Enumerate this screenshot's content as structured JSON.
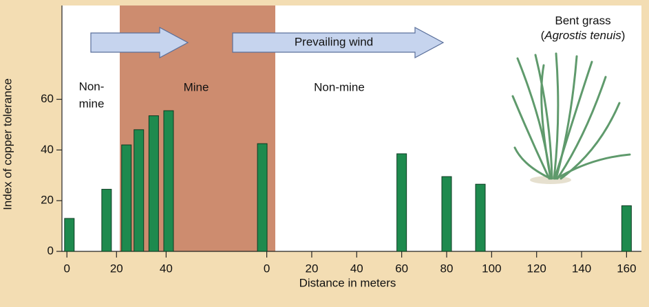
{
  "chart_data": {
    "type": "bar",
    "ylabel": "Index of copper tolerance",
    "xlabel": "Distance in meters",
    "ylim": [
      0,
      97
    ],
    "yticks": [
      0,
      20,
      40,
      60
    ],
    "color": "#1e8a4e",
    "segments": [
      {
        "xlim": [
          -2,
          46
        ],
        "xticks": [
          0,
          20,
          40
        ],
        "x": [
          1,
          16,
          24,
          29,
          35,
          41
        ],
        "values": [
          13,
          24.5,
          42,
          48,
          53.5,
          55.5
        ]
      },
      {
        "xlim": [
          -6,
          166
        ],
        "xticks": [
          0,
          20,
          40,
          60,
          80,
          100,
          120,
          140,
          160
        ],
        "x": [
          -2,
          60,
          80,
          95,
          160
        ],
        "values": [
          42.5,
          38.5,
          29.5,
          26.5,
          18
        ]
      }
    ],
    "annotations": {
      "non_mine_left": [
        "Non-",
        "mine"
      ],
      "mine": "Mine",
      "non_mine_right": "Non-mine",
      "wind": "Prevailing wind",
      "plant": {
        "name": "Bent grass",
        "open": "(",
        "species": "Agrostis tenuis",
        "close": ")"
      }
    }
  }
}
